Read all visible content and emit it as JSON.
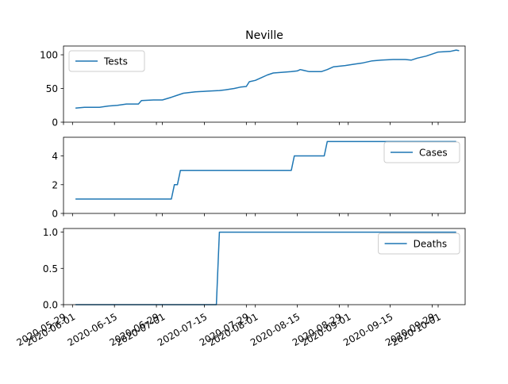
{
  "chart_data": [
    {
      "type": "line",
      "title": "Neville",
      "xlabel": "",
      "ylabel": "",
      "ylim": [
        0,
        113
      ],
      "yticks": [
        0,
        50,
        100
      ],
      "legend": "top-left",
      "show_xtick_labels": false,
      "series": [
        {
          "name": "Tests",
          "color": "#1f77b4",
          "points": [
            [
              "2020-06-02",
              21
            ],
            [
              "2020-06-05",
              22
            ],
            [
              "2020-06-10",
              22
            ],
            [
              "2020-06-13",
              24
            ],
            [
              "2020-06-16",
              25
            ],
            [
              "2020-06-19",
              27
            ],
            [
              "2020-06-23",
              27
            ],
            [
              "2020-06-24",
              32
            ],
            [
              "2020-06-28",
              33
            ],
            [
              "2020-07-01",
              33
            ],
            [
              "2020-07-04",
              37
            ],
            [
              "2020-07-06",
              40
            ],
            [
              "2020-07-08",
              43
            ],
            [
              "2020-07-10",
              44
            ],
            [
              "2020-07-12",
              45
            ],
            [
              "2020-07-16",
              46
            ],
            [
              "2020-07-20",
              47
            ],
            [
              "2020-07-22",
              48
            ],
            [
              "2020-07-25",
              50
            ],
            [
              "2020-07-27",
              52
            ],
            [
              "2020-07-29",
              53
            ],
            [
              "2020-07-30",
              60
            ],
            [
              "2020-08-01",
              62
            ],
            [
              "2020-08-03",
              66
            ],
            [
              "2020-08-05",
              70
            ],
            [
              "2020-08-07",
              73
            ],
            [
              "2020-08-10",
              74
            ],
            [
              "2020-08-13",
              75
            ],
            [
              "2020-08-15",
              76
            ],
            [
              "2020-08-16",
              78
            ],
            [
              "2020-08-19",
              75
            ],
            [
              "2020-08-23",
              75
            ],
            [
              "2020-08-25",
              78
            ],
            [
              "2020-08-27",
              82
            ],
            [
              "2020-08-31",
              84
            ],
            [
              "2020-09-03",
              86
            ],
            [
              "2020-09-06",
              88
            ],
            [
              "2020-09-09",
              91
            ],
            [
              "2020-09-12",
              92
            ],
            [
              "2020-09-16",
              93
            ],
            [
              "2020-09-20",
              93
            ],
            [
              "2020-09-22",
              92
            ],
            [
              "2020-09-24",
              95
            ],
            [
              "2020-09-27",
              98
            ],
            [
              "2020-10-01",
              104
            ],
            [
              "2020-10-05",
              105
            ],
            [
              "2020-10-07",
              107
            ],
            [
              "2020-10-08",
              106
            ]
          ]
        }
      ]
    },
    {
      "type": "line",
      "title": "",
      "xlabel": "",
      "ylabel": "",
      "ylim": [
        0,
        5.3
      ],
      "yticks": [
        0,
        2,
        4
      ],
      "legend": "top-right",
      "show_xtick_labels": false,
      "series": [
        {
          "name": "Cases",
          "color": "#1f77b4",
          "points": [
            [
              "2020-06-02",
              1
            ],
            [
              "2020-07-04",
              1
            ],
            [
              "2020-07-05",
              2
            ],
            [
              "2020-07-06",
              2
            ],
            [
              "2020-07-07",
              3
            ],
            [
              "2020-08-13",
              3
            ],
            [
              "2020-08-14",
              4
            ],
            [
              "2020-08-24",
              4
            ],
            [
              "2020-08-25",
              5
            ],
            [
              "2020-10-07",
              5
            ]
          ]
        }
      ]
    },
    {
      "type": "line",
      "title": "",
      "xlabel": "",
      "ylabel": "",
      "ylim": [
        0,
        1.05
      ],
      "yticks": [
        0,
        0.5,
        1.0
      ],
      "yticklabels": [
        "0.0",
        "0.5",
        "1.0"
      ],
      "legend": "top-right",
      "show_xtick_labels": true,
      "series": [
        {
          "name": "Deaths",
          "color": "#1f77b4",
          "points": [
            [
              "2020-06-02",
              0
            ],
            [
              "2020-07-19",
              0
            ],
            [
              "2020-07-20",
              1
            ],
            [
              "2020-10-07",
              1
            ]
          ]
        }
      ]
    }
  ],
  "x_axis": {
    "range": [
      "2020-05-29",
      "2020-10-10"
    ],
    "ticks": [
      {
        "date": "2020-05-29",
        "label": "2020-05-29"
      },
      {
        "date": "2020-06-01",
        "label": "2020-06-01"
      },
      {
        "date": "2020-06-15",
        "label": "2020-06-15"
      },
      {
        "date": "2020-06-29",
        "label": "2020-06-29"
      },
      {
        "date": "2020-07-01",
        "label": "2020-07-01"
      },
      {
        "date": "2020-07-15",
        "label": "2020-07-15"
      },
      {
        "date": "2020-07-29",
        "label": "2020-07-29"
      },
      {
        "date": "2020-08-01",
        "label": "2020-08-01"
      },
      {
        "date": "2020-08-15",
        "label": "2020-08-15"
      },
      {
        "date": "2020-08-29",
        "label": "2020-08-29"
      },
      {
        "date": "2020-09-01",
        "label": "2020-09-01"
      },
      {
        "date": "2020-09-15",
        "label": "2020-09-15"
      },
      {
        "date": "2020-09-29",
        "label": "2020-09-29"
      },
      {
        "date": "2020-10-01",
        "label": "2020-10-01"
      }
    ]
  }
}
